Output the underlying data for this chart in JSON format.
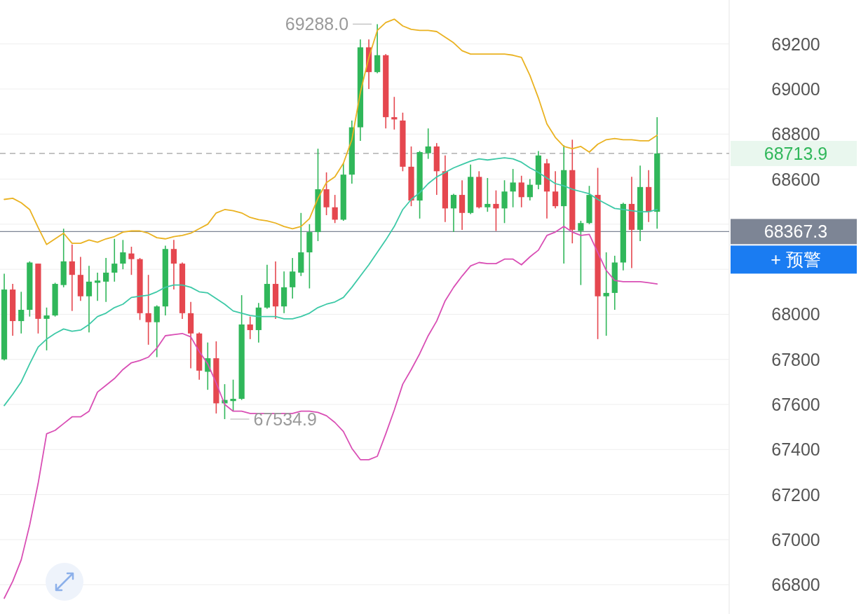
{
  "chart_data": {
    "type": "candlestick",
    "categories": [
      null,
      null,
      null,
      null,
      null,
      null,
      null,
      null,
      null,
      null,
      null,
      null,
      null,
      null,
      null,
      null,
      null,
      null,
      null,
      null,
      null,
      null,
      null,
      null,
      null,
      null,
      null,
      null,
      null,
      null,
      null,
      null,
      null,
      null,
      null,
      null,
      null,
      null,
      null,
      null,
      null,
      null,
      null,
      null,
      null,
      null,
      null,
      null,
      null,
      null,
      null,
      null,
      null,
      null,
      null,
      null,
      null,
      null,
      null,
      null,
      null,
      null,
      null,
      null,
      null,
      null,
      null,
      null,
      null,
      null,
      null,
      null,
      null,
      null,
      null,
      null,
      null,
      null,
      null,
      null,
      null,
      null,
      null,
      null,
      null,
      null
    ],
    "ohlc": [
      [
        67800,
        68180,
        67795,
        68110
      ],
      [
        68110,
        68135,
        67905,
        67970
      ],
      [
        67970,
        68100,
        67915,
        68020
      ],
      [
        68020,
        68235,
        67990,
        68230
      ],
      [
        68225,
        68225,
        67915,
        67980
      ],
      [
        67980,
        68030,
        67840,
        67995
      ],
      [
        67995,
        68140,
        67990,
        68135
      ],
      [
        68130,
        68380,
        68120,
        68235
      ],
      [
        68235,
        68310,
        68015,
        68175
      ],
      [
        68175,
        68255,
        68060,
        68080
      ],
      [
        68080,
        68215,
        67920,
        68145
      ],
      [
        68140,
        68185,
        68060,
        68150
      ],
      [
        68145,
        68250,
        68055,
        68185
      ],
      [
        68185,
        68335,
        68145,
        68225
      ],
      [
        68225,
        68330,
        68200,
        68275
      ],
      [
        68270,
        68300,
        68175,
        68245
      ],
      [
        68245,
        68250,
        67975,
        68005
      ],
      [
        68005,
        68175,
        67865,
        67965
      ],
      [
        67965,
        68040,
        67810,
        68035
      ],
      [
        68035,
        68305,
        67995,
        68290
      ],
      [
        68290,
        68330,
        68110,
        68225
      ],
      [
        68225,
        68230,
        67980,
        68005
      ],
      [
        68005,
        68055,
        67760,
        67915
      ],
      [
        67915,
        67920,
        67710,
        67750
      ],
      [
        67745,
        67875,
        67665,
        67805
      ],
      [
        67805,
        67880,
        67560,
        67605
      ],
      [
        67605,
        67690,
        67534.9,
        67620
      ],
      [
        67615,
        67710,
        67570,
        67625
      ],
      [
        67625,
        68085,
        67620,
        67955
      ],
      [
        67955,
        67990,
        67890,
        67930
      ],
      [
        67930,
        68050,
        67875,
        68030
      ],
      [
        68030,
        68220,
        68025,
        68135
      ],
      [
        68135,
        68235,
        67980,
        68035
      ],
      [
        68035,
        68190,
        68005,
        68120
      ],
      [
        68120,
        68250,
        68070,
        68190
      ],
      [
        68185,
        68450,
        68170,
        68275
      ],
      [
        68275,
        68400,
        68115,
        68365
      ],
      [
        68365,
        68735,
        68325,
        68555
      ],
      [
        68555,
        68630,
        68440,
        68475
      ],
      [
        68475,
        68530,
        68405,
        68420
      ],
      [
        68420,
        68670,
        68415,
        68620
      ],
      [
        68620,
        68860,
        68580,
        68830
      ],
      [
        68830,
        69220,
        68770,
        69185
      ],
      [
        69185,
        69220,
        69000,
        69075
      ],
      [
        69075,
        69288.0,
        69070,
        69150
      ],
      [
        69150,
        69155,
        68825,
        68875
      ],
      [
        68875,
        68965,
        68820,
        68865
      ],
      [
        68860,
        68895,
        68635,
        68655
      ],
      [
        68655,
        68745,
        68480,
        68505
      ],
      [
        68505,
        68725,
        68425,
        68720
      ],
      [
        68715,
        68825,
        68690,
        68745
      ],
      [
        68745,
        68760,
        68530,
        68635
      ],
      [
        68635,
        68705,
        68410,
        68470
      ],
      [
        68470,
        68535,
        68365,
        68530
      ],
      [
        68530,
        68595,
        68375,
        68450
      ],
      [
        68450,
        68665,
        68445,
        68610
      ],
      [
        68610,
        68635,
        68470,
        68475
      ],
      [
        68475,
        68605,
        68455,
        68490
      ],
      [
        68490,
        68550,
        68370,
        68470
      ],
      [
        68470,
        68595,
        68405,
        68545
      ],
      [
        68545,
        68645,
        68475,
        68585
      ],
      [
        68585,
        68615,
        68475,
        68520
      ],
      [
        68520,
        68600,
        68505,
        68575
      ],
      [
        68575,
        68725,
        68555,
        68705
      ],
      [
        68670,
        68690,
        68425,
        68545
      ],
      [
        68545,
        68635,
        68470,
        68480
      ],
      [
        68480,
        68750,
        68225,
        68640
      ],
      [
        68640,
        68775,
        68315,
        68375
      ],
      [
        68370,
        68415,
        68130,
        68405
      ],
      [
        68405,
        68570,
        68400,
        68530
      ],
      [
        68530,
        68650,
        67890,
        68080
      ],
      [
        68080,
        68275,
        67905,
        68095
      ],
      [
        68095,
        68260,
        68020,
        68230
      ],
      [
        68230,
        68495,
        68195,
        68490
      ],
      [
        68490,
        68610,
        68205,
        68375
      ],
      [
        68375,
        68660,
        68325,
        68565
      ],
      [
        68565,
        68640,
        68410,
        68455
      ],
      [
        68455,
        68875,
        68380,
        68713.9
      ],
      null,
      null,
      null,
      null,
      null,
      null,
      null,
      null
    ],
    "colors": [
      "#30b75a",
      "#e5474f",
      "#30b75a",
      "#30b75a",
      "#e5474f",
      "#30b75a",
      "#30b75a",
      "#30b75a",
      "#e5474f",
      "#e5474f",
      "#30b75a",
      "#30b75a",
      "#30b75a",
      "#30b75a",
      "#30b75a",
      "#e5474f",
      "#e5474f",
      "#e5474f",
      "#30b75a",
      "#30b75a",
      "#e5474f",
      "#e5474f",
      "#e5474f",
      "#e5474f",
      "#30b75a",
      "#e5474f",
      "#30b75a",
      "#30b75a",
      "#30b75a",
      "#e5474f",
      "#30b75a",
      "#30b75a",
      "#e5474f",
      "#30b75a",
      "#30b75a",
      "#30b75a",
      "#30b75a",
      "#30b75a",
      "#e5474f",
      "#e5474f",
      "#30b75a",
      "#30b75a",
      "#30b75a",
      "#e5474f",
      "#30b75a",
      "#e5474f",
      "#e5474f",
      "#e5474f",
      "#e5474f",
      "#30b75a",
      "#30b75a",
      "#e5474f",
      "#e5474f",
      "#30b75a",
      "#e5474f",
      "#30b75a",
      "#e5474f",
      "#30b75a",
      "#e5474f",
      "#30b75a",
      "#30b75a",
      "#e5474f",
      "#30b75a",
      "#30b75a",
      "#e5474f",
      "#e5474f",
      "#30b75a",
      "#e5474f",
      "#30b75a",
      "#30b75a",
      "#e5474f",
      "#30b75a",
      "#30b75a",
      "#30b75a",
      "#e5474f",
      "#30b75a",
      "#e5474f",
      "#30b75a",
      null,
      null,
      null,
      null,
      null,
      null,
      null,
      null
    ],
    "series": [
      {
        "type": "line",
        "color": "#eab221",
        "values": [
          68510,
          68515,
          68495,
          68465,
          68385,
          68310,
          68335,
          68360,
          68315,
          68315,
          68330,
          68320,
          68335,
          68345,
          68365,
          68370,
          68370,
          68360,
          68340,
          68335,
          68345,
          68350,
          68360,
          68380,
          68400,
          68450,
          68465,
          68460,
          68450,
          68430,
          68420,
          68415,
          68405,
          68390,
          68380,
          68390,
          68425,
          68515,
          68585,
          68610,
          68670,
          68775,
          68985,
          69140,
          69260,
          69295,
          69310,
          69280,
          69265,
          69260,
          69260,
          69255,
          69230,
          69205,
          69170,
          69155,
          69155,
          69155,
          69155,
          69155,
          69150,
          69140,
          69060,
          68960,
          68845,
          68785,
          68745,
          68735,
          68745,
          68720,
          68755,
          68775,
          68780,
          68775,
          68775,
          68770,
          68770,
          68795,
          null,
          null,
          null,
          null,
          null,
          null,
          null,
          null
        ]
      },
      {
        "type": "line",
        "color": "#3dc9a7",
        "values": [
          67595,
          67645,
          67700,
          67780,
          67855,
          67890,
          67915,
          67935,
          67925,
          67930,
          67955,
          67990,
          68005,
          68030,
          68045,
          68075,
          68080,
          68085,
          68100,
          68120,
          68130,
          68130,
          68120,
          68100,
          68095,
          68070,
          68045,
          68015,
          68005,
          67995,
          67990,
          67990,
          67990,
          67980,
          67980,
          67990,
          68005,
          68030,
          68045,
          68055,
          68075,
          68120,
          68170,
          68220,
          68275,
          68330,
          68390,
          68465,
          68510,
          68540,
          68580,
          68610,
          68630,
          68650,
          68665,
          68680,
          68690,
          68685,
          68690,
          68695,
          68690,
          68675,
          68650,
          68630,
          68605,
          68580,
          68570,
          68555,
          68545,
          68535,
          68510,
          68490,
          68470,
          68465,
          68460,
          68455,
          68455,
          68465,
          null,
          null,
          null,
          null,
          null,
          null,
          null,
          null
        ]
      },
      {
        "type": "line",
        "color": "#d94fb5",
        "values": [
          66740,
          66815,
          66910,
          67065,
          67250,
          67470,
          67485,
          67515,
          67545,
          67545,
          67570,
          67655,
          67685,
          67715,
          67755,
          67785,
          67795,
          67810,
          67850,
          67905,
          67910,
          67915,
          67900,
          67835,
          67780,
          67695,
          67600,
          67570,
          67570,
          67560,
          67560,
          67560,
          67560,
          67560,
          67560,
          67570,
          67570,
          67565,
          67550,
          67520,
          67480,
          67405,
          67355,
          67355,
          67370,
          67470,
          67575,
          67690,
          67755,
          67825,
          67905,
          67970,
          68060,
          68120,
          68170,
          68215,
          68230,
          68225,
          68225,
          68245,
          68245,
          68220,
          68255,
          68285,
          68350,
          68365,
          68390,
          68365,
          68350,
          68355,
          68275,
          68195,
          68150,
          68145,
          68145,
          68145,
          68140,
          68135,
          null,
          null,
          null,
          null,
          null,
          null,
          null,
          null
        ]
      }
    ],
    "ylim": [
      66670,
      69395
    ],
    "yticks": [
      66800,
      67000,
      67200,
      67400,
      67600,
      67800,
      68000,
      {
        "value": 68200,
        "label": null
      },
      {
        "value": 68400,
        "label": null
      },
      68600,
      68800,
      69000,
      69200
    ],
    "grid": "y",
    "ref_lines": [
      {
        "axis": "y",
        "value": 68713.9,
        "label": "68713.9",
        "color": "#a0a0a0",
        "line_style": "dashed"
      },
      {
        "axis": "y",
        "value": 68367.3,
        "label": "68367.3",
        "color": "#7d8595",
        "line_style": "solid"
      }
    ],
    "annotations": [
      "69288.0",
      "67534.9",
      "+ 预警"
    ]
  }
}
